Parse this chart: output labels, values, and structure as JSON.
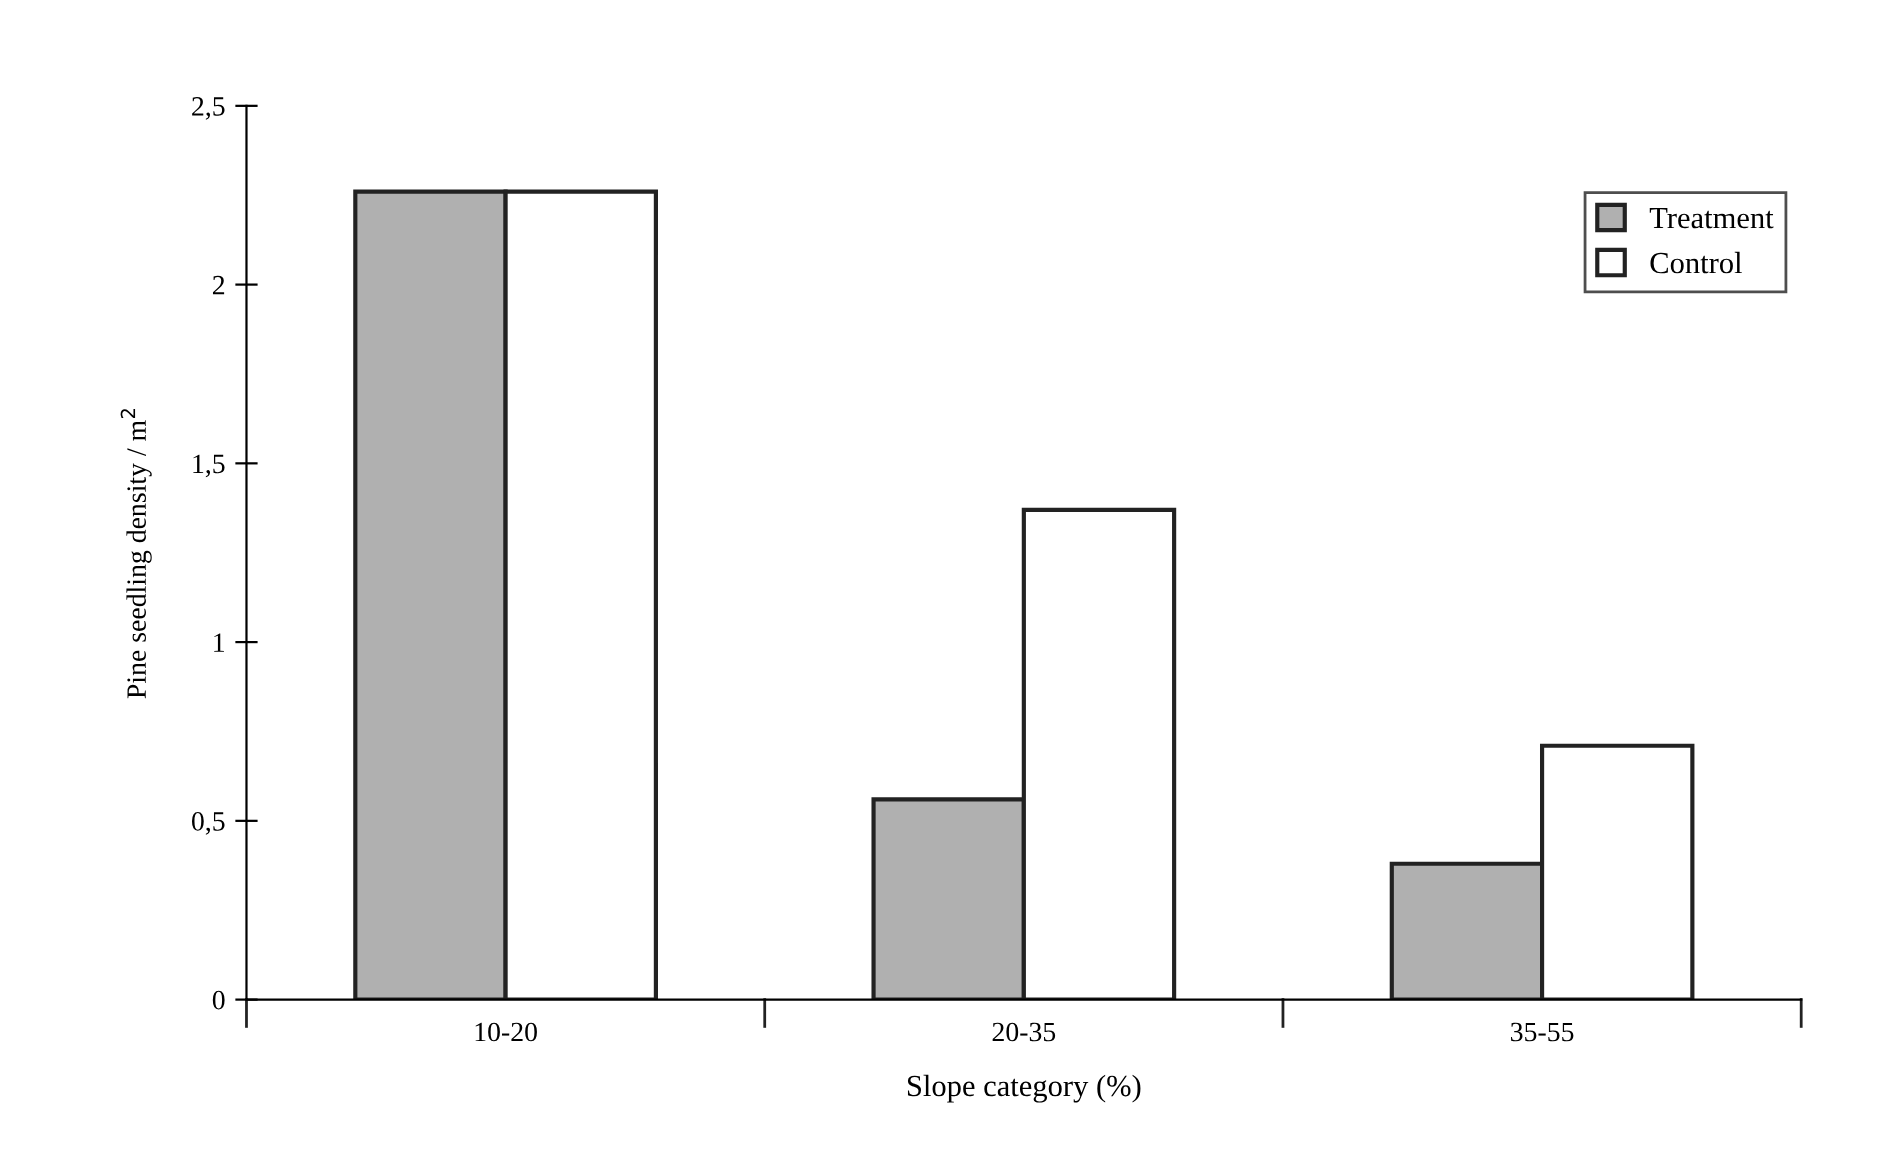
{
  "chart_data": {
    "type": "bar",
    "xlabel": "Slope category (%)",
    "ylabel": "Pine seedling density / m$^{2}$",
    "categories": [
      "10-20",
      "20-35",
      "35-55"
    ],
    "series": [
      {
        "name": "Treatment",
        "color": "#b0b0b0",
        "values": [
          2.26,
          0.56,
          0.38
        ]
      },
      {
        "name": "Control",
        "color": "#ffffff",
        "values": [
          2.26,
          1.37,
          0.71
        ]
      }
    ],
    "ylim": [
      0,
      2.5
    ],
    "yticks": [
      0,
      {
        "value": 0.5,
        "label": "0,5"
      },
      1,
      {
        "value": 1.5,
        "label": "1,5"
      },
      2,
      {
        "value": 2.5,
        "label": "2,5"
      }
    ],
    "grid": false,
    "legend": "top right"
  }
}
